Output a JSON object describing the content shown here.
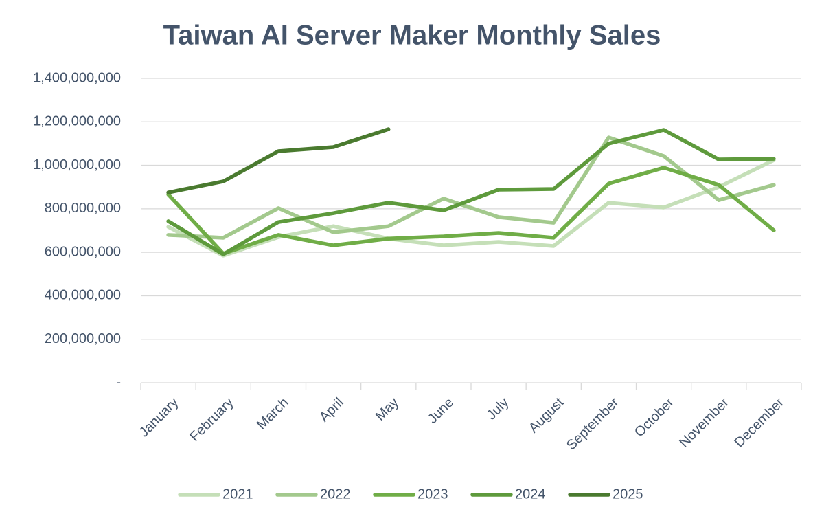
{
  "chart_data": {
    "type": "line",
    "title": "Taiwan AI Server Maker Monthly Sales",
    "categories": [
      "January",
      "February",
      "March",
      "April",
      "May",
      "June",
      "July",
      "August",
      "September",
      "October",
      "November",
      "December"
    ],
    "series": [
      {
        "name": "2021",
        "color": "#c5dfb8",
        "values": [
          717000000,
          585000000,
          670000000,
          720000000,
          663000000,
          632000000,
          648000000,
          629000000,
          828000000,
          806000000,
          900000000,
          1024000000
        ]
      },
      {
        "name": "2022",
        "color": "#a3c98d",
        "values": [
          680000000,
          667000000,
          803000000,
          692000000,
          720000000,
          847000000,
          762000000,
          736000000,
          1128000000,
          1043000000,
          840000000,
          910000000
        ]
      },
      {
        "name": "2023",
        "color": "#70ad47",
        "values": [
          866000000,
          594000000,
          680000000,
          632000000,
          663000000,
          673000000,
          689000000,
          667000000,
          916000000,
          989000000,
          910000000,
          701000000
        ]
      },
      {
        "name": "2024",
        "color": "#5e9a3c",
        "values": [
          743000000,
          591000000,
          739000000,
          780000000,
          828000000,
          793000000,
          888000000,
          891000000,
          1100000000,
          1163000000,
          1027000000,
          1030000000
        ]
      },
      {
        "name": "2025",
        "color": "#4a7a2f",
        "values": [
          875000000,
          926000000,
          1065000000,
          1084000000,
          1166000000,
          null,
          null,
          null,
          null,
          null,
          null,
          null
        ]
      }
    ],
    "ylim": [
      0,
      1400000000
    ],
    "yticks": [
      {
        "value": 0,
        "label": "-"
      },
      {
        "value": 200000000,
        "label": "200,000,000"
      },
      {
        "value": 400000000,
        "label": "400,000,000"
      },
      {
        "value": 600000000,
        "label": "600,000,000"
      },
      {
        "value": 800000000,
        "label": "800,000,000"
      },
      {
        "value": 1000000000,
        "label": "1,000,000,000"
      },
      {
        "value": 1200000000,
        "label": "1,200,000,000"
      },
      {
        "value": 1400000000,
        "label": "1,400,000,000"
      }
    ],
    "grid": true,
    "legend": "bottom"
  }
}
